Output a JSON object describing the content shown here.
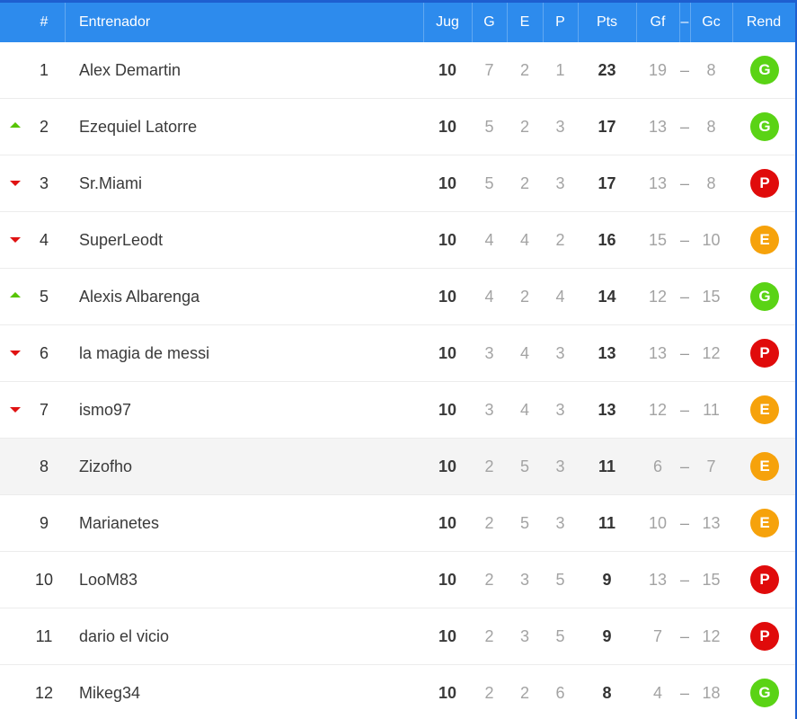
{
  "colors": {
    "header_bg": "#2d8bed",
    "trend_up": "#57c400",
    "trend_down": "#e01212",
    "badge_G": "#5ad315",
    "badge_E": "#f6a20b",
    "badge_P": "#e00b0b"
  },
  "header": {
    "pos": "#",
    "name": "Entrenador",
    "jug": "Jug",
    "g": "G",
    "e": "E",
    "p": "P",
    "pts": "Pts",
    "gf": "Gf",
    "dash": "–",
    "gc": "Gc",
    "rend": "Rend"
  },
  "rows": [
    {
      "pos": "1",
      "trend": "none",
      "name": "Alex Demartin",
      "jug": "10",
      "g": "7",
      "e": "2",
      "p": "1",
      "pts": "23",
      "gf": "19",
      "dash": "–",
      "gc": "8",
      "rend": "G"
    },
    {
      "pos": "2",
      "trend": "up",
      "name": "Ezequiel Latorre",
      "jug": "10",
      "g": "5",
      "e": "2",
      "p": "3",
      "pts": "17",
      "gf": "13",
      "dash": "–",
      "gc": "8",
      "rend": "G"
    },
    {
      "pos": "3",
      "trend": "down",
      "name": "Sr.Miami",
      "jug": "10",
      "g": "5",
      "e": "2",
      "p": "3",
      "pts": "17",
      "gf": "13",
      "dash": "–",
      "gc": "8",
      "rend": "P"
    },
    {
      "pos": "4",
      "trend": "down",
      "name": "SuperLeodt",
      "jug": "10",
      "g": "4",
      "e": "4",
      "p": "2",
      "pts": "16",
      "gf": "15",
      "dash": "–",
      "gc": "10",
      "rend": "E"
    },
    {
      "pos": "5",
      "trend": "up",
      "name": "Alexis Albarenga",
      "jug": "10",
      "g": "4",
      "e": "2",
      "p": "4",
      "pts": "14",
      "gf": "12",
      "dash": "–",
      "gc": "15",
      "rend": "G"
    },
    {
      "pos": "6",
      "trend": "down",
      "name": "la magia de messi",
      "jug": "10",
      "g": "3",
      "e": "4",
      "p": "3",
      "pts": "13",
      "gf": "13",
      "dash": "–",
      "gc": "12",
      "rend": "P"
    },
    {
      "pos": "7",
      "trend": "down",
      "name": "ismo97",
      "jug": "10",
      "g": "3",
      "e": "4",
      "p": "3",
      "pts": "13",
      "gf": "12",
      "dash": "–",
      "gc": "11",
      "rend": "E"
    },
    {
      "pos": "8",
      "trend": "none",
      "highlight": true,
      "name": "Zizofho",
      "jug": "10",
      "g": "2",
      "e": "5",
      "p": "3",
      "pts": "11",
      "gf": "6",
      "dash": "–",
      "gc": "7",
      "rend": "E"
    },
    {
      "pos": "9",
      "trend": "none",
      "name": "Marianetes",
      "jug": "10",
      "g": "2",
      "e": "5",
      "p": "3",
      "pts": "11",
      "gf": "10",
      "dash": "–",
      "gc": "13",
      "rend": "E"
    },
    {
      "pos": "10",
      "trend": "none",
      "name": "LooM83",
      "jug": "10",
      "g": "2",
      "e": "3",
      "p": "5",
      "pts": "9",
      "gf": "13",
      "dash": "–",
      "gc": "15",
      "rend": "P"
    },
    {
      "pos": "11",
      "trend": "none",
      "name": "dario el vicio",
      "jug": "10",
      "g": "2",
      "e": "3",
      "p": "5",
      "pts": "9",
      "gf": "7",
      "dash": "–",
      "gc": "12",
      "rend": "P"
    },
    {
      "pos": "12",
      "trend": "none",
      "name": "Mikeg34",
      "jug": "10",
      "g": "2",
      "e": "2",
      "p": "6",
      "pts": "8",
      "gf": "4",
      "dash": "–",
      "gc": "18",
      "rend": "G"
    }
  ]
}
